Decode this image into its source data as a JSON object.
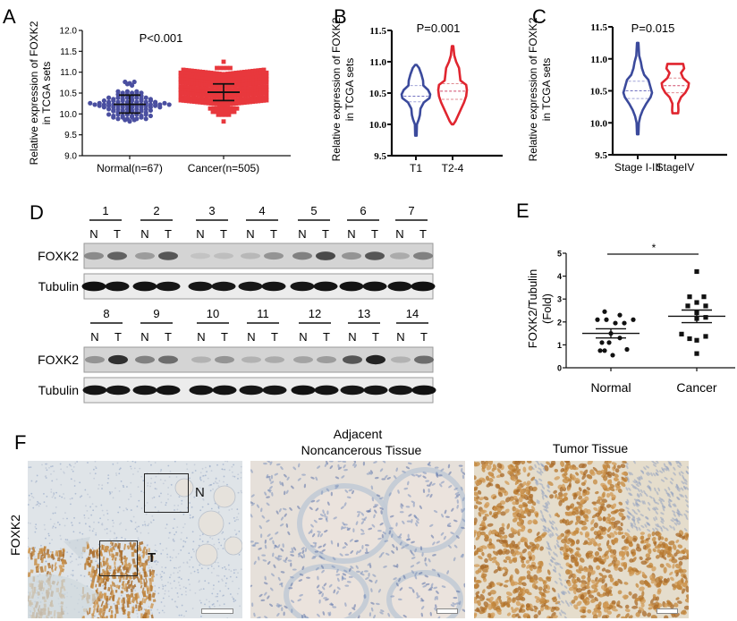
{
  "panels": {
    "A": {
      "letter": "A"
    },
    "B": {
      "letter": "B"
    },
    "C": {
      "letter": "C"
    },
    "D": {
      "letter": "D"
    },
    "E": {
      "letter": "E"
    },
    "F": {
      "letter": "F"
    }
  },
  "chart_data": [
    {
      "panel": "A",
      "type": "scatter",
      "title": "P<0.001",
      "ylabel": "Relative expression of FOXK2 in TCGA sets",
      "xlabel": "",
      "categories": [
        "Normal(n=67)",
        "Cancer(n=505)"
      ],
      "ylim": [
        9.0,
        12.0
      ],
      "yticks": [
        "9.0",
        "9.5",
        "10.0",
        "10.5",
        "11.0",
        "11.5",
        "12.0"
      ],
      "series": [
        {
          "name": "Normal",
          "n": 67,
          "color": "#4a4fa0",
          "marker": "circle",
          "mean": 10.23,
          "sd_low": 10.02,
          "sd_high": 10.45,
          "min": 9.83,
          "max": 10.75
        },
        {
          "name": "Cancer",
          "n": 505,
          "color": "#e8383d",
          "marker": "square",
          "mean": 10.52,
          "sd_low": 10.32,
          "sd_high": 10.72,
          "min": 9.82,
          "max": 11.25
        }
      ],
      "annotation": "P<0.001"
    },
    {
      "panel": "B",
      "type": "violin",
      "ylabel": "Relative expression of FOXK2 in TCGA sets",
      "categories": [
        "T1",
        "T2-4"
      ],
      "ylim": [
        9.5,
        11.5
      ],
      "yticks": [
        "9.5",
        "10.0",
        "10.5",
        "11.0",
        "11.5"
      ],
      "series": [
        {
          "name": "T1",
          "color": "#3b4a9c",
          "min": 9.82,
          "max": 10.95,
          "q1": 10.36,
          "median": 10.45,
          "q3": 10.62
        },
        {
          "name": "T2-4",
          "color": "#e0252f",
          "min": 10.0,
          "max": 11.25,
          "q1": 10.4,
          "median": 10.53,
          "q3": 10.65
        }
      ],
      "annotation": "P=0.001"
    },
    {
      "panel": "C",
      "type": "violin",
      "ylabel": "Relative expression of FOXK2 in TCGA sets",
      "categories": [
        "Stage I-III",
        "StageIV"
      ],
      "ylim": [
        9.5,
        11.5
      ],
      "yticks": [
        "9.5",
        "10.0",
        "10.5",
        "11.0",
        "11.5"
      ],
      "series": [
        {
          "name": "Stage I-III",
          "color": "#3b4a9c",
          "min": 9.82,
          "max": 11.25,
          "q1": 10.38,
          "median": 10.5,
          "q3": 10.65
        },
        {
          "name": "StageIV",
          "color": "#e0252f",
          "min": 10.15,
          "max": 10.92,
          "q1": 10.47,
          "median": 10.58,
          "q3": 10.7
        }
      ],
      "annotation": "P=0.015"
    },
    {
      "panel": "E",
      "type": "scatter",
      "ylabel": "FOXK2/Tubulin (Fold)",
      "categories": [
        "Normal",
        "Cancer"
      ],
      "ylim": [
        0,
        5
      ],
      "yticks": [
        "0",
        "1",
        "2",
        "3",
        "4",
        "5"
      ],
      "series": [
        {
          "name": "Normal",
          "marker": "circle",
          "color": "#111111",
          "mean": 1.5,
          "sem_low": 1.3,
          "sem_high": 1.7,
          "values": [
            2.45,
            2.3,
            2.1,
            2.1,
            1.95,
            1.95,
            2.1,
            1.5,
            1.1,
            1.1,
            1.3,
            0.75,
            0.55,
            0.75,
            0.8
          ]
        },
        {
          "name": "Cancer",
          "marker": "square",
          "color": "#111111",
          "mean": 2.25,
          "sem_low": 1.97,
          "sem_high": 2.52,
          "values": [
            4.2,
            3.1,
            3.1,
            2.85,
            2.7,
            2.7,
            2.4,
            2.2,
            2.15,
            1.47,
            1.27,
            1.2,
            1.37,
            0.62
          ]
        }
      ],
      "annotation": "*"
    }
  ],
  "western_blot": {
    "row1": {
      "samples": [
        "1",
        "2",
        "3",
        "4",
        "5",
        "6",
        "7"
      ],
      "lane_labels": [
        "N",
        "T"
      ],
      "foxk2_label": "FOXK2",
      "tubulin_label": "Tubulin",
      "foxk2_intensity": [
        0.55,
        0.75,
        0.45,
        0.8,
        0.15,
        0.2,
        0.25,
        0.5,
        0.6,
        0.85,
        0.5,
        0.8,
        0.35,
        0.6
      ],
      "tubulin_intensity": [
        0.95,
        0.9,
        0.9,
        0.85,
        0.85,
        0.8,
        0.8,
        0.85,
        0.85,
        0.9,
        0.9,
        0.9,
        0.9,
        0.95
      ]
    },
    "row2": {
      "samples": [
        "8",
        "9",
        "10",
        "11",
        "12",
        "13",
        "14"
      ],
      "lane_labels": [
        "N",
        "T"
      ],
      "foxk2_label": "FOXK2",
      "tubulin_label": "Tubulin",
      "foxk2_intensity": [
        0.5,
        0.95,
        0.6,
        0.7,
        0.3,
        0.5,
        0.3,
        0.35,
        0.4,
        0.45,
        0.8,
        1.0,
        0.3,
        0.7
      ],
      "tubulin_intensity": [
        0.9,
        0.85,
        0.85,
        0.9,
        0.9,
        0.9,
        0.85,
        0.85,
        0.95,
        0.9,
        0.85,
        0.85,
        0.85,
        0.95
      ]
    }
  },
  "ihc": {
    "row_label": "FOXK2",
    "overview": {
      "box_n_label": "N",
      "box_t_label": "T"
    },
    "adjacent_title_line1": "Adjacent",
    "adjacent_title_line2": "Noncancerous Tissue",
    "tumor_title": "Tumor Tissue"
  }
}
